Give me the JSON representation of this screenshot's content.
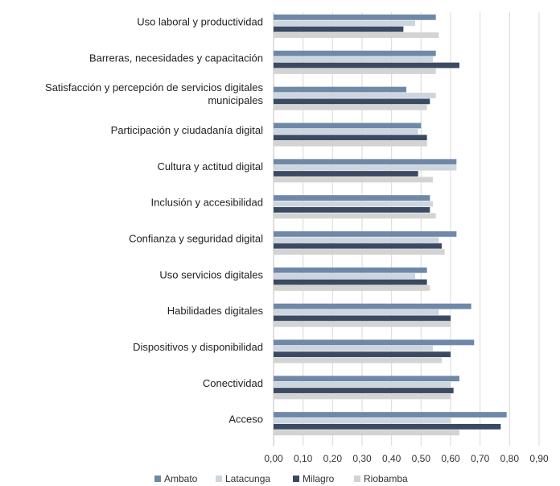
{
  "chart_data": {
    "type": "bar",
    "orientation": "horizontal",
    "categories": [
      [
        "Uso laboral y productividad"
      ],
      [
        "Barreras, necesidades y capacitación"
      ],
      [
        "Satisfacción y percepción de servicios digitales",
        "municipales"
      ],
      [
        "Participación y ciudadanía digital"
      ],
      [
        "Cultura y actitud digital"
      ],
      [
        "Inclusión y accesibilidad"
      ],
      [
        "Confianza y seguridad digital"
      ],
      [
        "Uso servicios digitales"
      ],
      [
        "Habilidades digitales"
      ],
      [
        "Dispositivos y disponibilidad"
      ],
      [
        "Conectividad"
      ],
      [
        "Acceso"
      ]
    ],
    "series": [
      {
        "name": "Ambato",
        "color": "#6f88a8",
        "values": [
          0.55,
          0.55,
          0.45,
          0.5,
          0.62,
          0.53,
          0.62,
          0.52,
          0.67,
          0.68,
          0.63,
          0.79
        ]
      },
      {
        "name": "Latacunga",
        "color": "#cdd5de",
        "values": [
          0.48,
          0.54,
          0.55,
          0.49,
          0.62,
          0.54,
          0.56,
          0.48,
          0.56,
          0.54,
          0.6,
          0.6
        ]
      },
      {
        "name": "Milagro",
        "color": "#3b4a63",
        "values": [
          0.44,
          0.63,
          0.53,
          0.52,
          0.49,
          0.53,
          0.57,
          0.52,
          0.6,
          0.6,
          0.61,
          0.77
        ]
      },
      {
        "name": "Riobamba",
        "color": "#d3d3d3",
        "values": [
          0.56,
          0.55,
          0.52,
          0.52,
          0.54,
          0.55,
          0.58,
          0.53,
          0.6,
          0.57,
          0.6,
          0.63
        ]
      }
    ],
    "xlim": [
      0,
      0.9
    ],
    "x_ticks": [
      "0,00",
      "0,10",
      "0,20",
      "0,30",
      "0,40",
      "0,50",
      "0,60",
      "0,70",
      "0,80",
      "0,90"
    ],
    "grid": true,
    "legend_position": "bottom"
  }
}
